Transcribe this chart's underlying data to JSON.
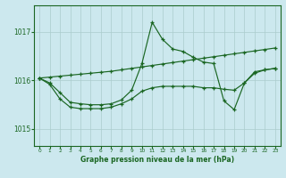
{
  "title": "Graphe pression niveau de la mer (hPa)",
  "bg_color": "#cce8ee",
  "grid_color": "#aacccc",
  "line_color": "#1a6622",
  "x_labels": [
    "0",
    "1",
    "2",
    "3",
    "4",
    "5",
    "6",
    "7",
    "8",
    "9",
    "10",
    "11",
    "12",
    "13",
    "14",
    "15",
    "16",
    "17",
    "18",
    "19",
    "20",
    "21",
    "22",
    "23"
  ],
  "yticks": [
    1015,
    1016,
    1017
  ],
  "ylim": [
    1014.65,
    1017.55
  ],
  "xlim": [
    -0.5,
    23.5
  ],
  "series_rising": [
    1016.05,
    1016.07,
    1016.09,
    1016.11,
    1016.13,
    1016.15,
    1016.17,
    1016.19,
    1016.22,
    1016.25,
    1016.28,
    1016.31,
    1016.34,
    1016.37,
    1016.4,
    1016.43,
    1016.46,
    1016.49,
    1016.52,
    1016.55,
    1016.58,
    1016.61,
    1016.64,
    1016.67
  ],
  "series_spike": [
    1016.05,
    1015.95,
    1015.75,
    1015.55,
    1015.52,
    1015.5,
    1015.5,
    1015.52,
    1015.6,
    1015.8,
    1016.35,
    1017.2,
    1016.85,
    1016.65,
    1016.6,
    1016.48,
    1016.38,
    1016.35,
    1015.58,
    1015.4,
    1015.95,
    1016.15,
    1016.22,
    1016.25
  ],
  "series_flat_low": [
    1016.05,
    1015.92,
    1015.62,
    1015.45,
    1015.42,
    1015.42,
    1015.42,
    1015.45,
    1015.52,
    1015.62,
    1015.78,
    1015.85,
    1015.88,
    1015.88,
    1015.88,
    1015.88,
    1015.85,
    1015.85,
    1015.82,
    1015.8,
    1015.95,
    1016.18,
    1016.22,
    1016.25
  ]
}
